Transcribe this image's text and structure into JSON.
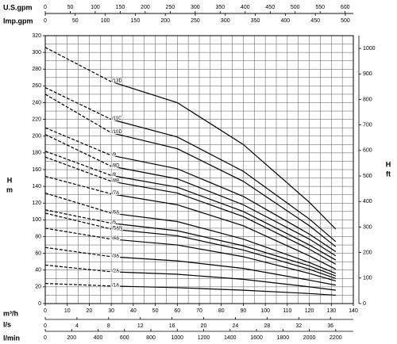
{
  "chart_data": {
    "type": "line",
    "x_label": "m³/h",
    "y_label": "H",
    "y_unit": "m",
    "y2_label": "H",
    "y2_unit": "ft",
    "xlim": [
      0,
      140
    ],
    "xticks": [
      0,
      10,
      20,
      30,
      40,
      50,
      60,
      70,
      80,
      90,
      100,
      110,
      120,
      130,
      140
    ],
    "xgrid": [
      0,
      5,
      10,
      15,
      20,
      25,
      30,
      35,
      40,
      45,
      50,
      55,
      60,
      65,
      70,
      75,
      80,
      85,
      90,
      95,
      100,
      105,
      110,
      115,
      120,
      125,
      130,
      135,
      140
    ],
    "ylim": [
      0,
      320
    ],
    "yticks": [
      0,
      20,
      40,
      60,
      80,
      100,
      120,
      140,
      160,
      180,
      200,
      220,
      240,
      260,
      280,
      300,
      320
    ],
    "ygrid": [
      0,
      10,
      20,
      30,
      40,
      50,
      60,
      70,
      80,
      90,
      100,
      110,
      120,
      130,
      140,
      150,
      160,
      170,
      180,
      190,
      200,
      210,
      220,
      230,
      240,
      250,
      260,
      270,
      280,
      290,
      300,
      310,
      320
    ],
    "y2lim": [
      0,
      1049.9
    ],
    "y2ticks": [
      0,
      100,
      200,
      300,
      400,
      500,
      600,
      700,
      800,
      900,
      1000
    ],
    "top_axes": [
      {
        "label": "U.S.gpm",
        "lim": [
          0,
          616.4
        ],
        "ticks": [
          0,
          50,
          100,
          150,
          200,
          250,
          300,
          350,
          400,
          450,
          500,
          550,
          600
        ]
      },
      {
        "label": "Imp.gpm",
        "lim": [
          0,
          513.3
        ],
        "ticks": [
          0,
          50,
          100,
          150,
          200,
          250,
          300,
          350,
          400,
          450,
          500
        ]
      }
    ],
    "bottom_axes": [
      {
        "label": "l/s",
        "lim": [
          0,
          38.89
        ],
        "ticks": [
          0,
          4,
          8,
          12,
          16,
          20,
          24,
          28,
          32,
          36
        ]
      },
      {
        "label": "l/min",
        "lim": [
          0,
          2333.3
        ],
        "ticks": [
          0,
          200,
          400,
          600,
          800,
          1000,
          1200,
          1400,
          1600,
          1800,
          2000,
          2200
        ]
      }
    ],
    "grid": true,
    "dashed_until": 30,
    "x": [
      0,
      30,
      60,
      90,
      120,
      132
    ],
    "series": [
      {
        "name": "/13D",
        "color": "#000000",
        "values": [
          306,
          265,
          240,
          190,
          121,
          89
        ]
      },
      {
        "name": "/11C",
        "color": "#000000",
        "values": [
          258,
          220,
          199,
          158,
          101,
          74
        ]
      },
      {
        "name": "/10D",
        "color": "#000000",
        "values": [
          250,
          204,
          185,
          146,
          93,
          68
        ]
      },
      {
        "name": "/9",
        "color": "#000000",
        "values": [
          210,
          177,
          161,
          128,
          83,
          62
        ]
      },
      {
        "name": "/8D",
        "color": "#000000",
        "values": [
          202,
          164,
          149,
          118,
          77,
          57
        ]
      },
      {
        "name": "/8",
        "color": "#000000",
        "values": [
          182,
          153,
          139,
          110,
          70,
          52
        ]
      },
      {
        "name": "/8B",
        "color": "#000000",
        "values": [
          175,
          146,
          132,
          104,
          65,
          47
        ]
      },
      {
        "name": "/7A",
        "color": "#000000",
        "values": [
          152,
          131,
          118,
          93,
          57,
          41
        ]
      },
      {
        "name": "/6A",
        "color": "#000000",
        "values": [
          132,
          108,
          98,
          77,
          49,
          36
        ]
      },
      {
        "name": "/5",
        "color": "#000000",
        "values": [
          112,
          96,
          87,
          69,
          45,
          33
        ]
      },
      {
        "name": "/5AN",
        "color": "#000000",
        "values": [
          108,
          89,
          81,
          64,
          41,
          30
        ]
      },
      {
        "name": "/4A",
        "color": "#000000",
        "values": [
          90,
          77,
          70,
          56,
          36,
          27
        ]
      },
      {
        "name": "/3A",
        "color": "#000000",
        "values": [
          67,
          56,
          51,
          42,
          28,
          22
        ]
      },
      {
        "name": "/2A",
        "color": "#000000",
        "values": [
          46,
          38,
          35,
          29,
          20,
          16
        ]
      },
      {
        "name": "/1A",
        "color": "#000000",
        "values": [
          24,
          21,
          19,
          16,
          12,
          10
        ]
      }
    ]
  }
}
